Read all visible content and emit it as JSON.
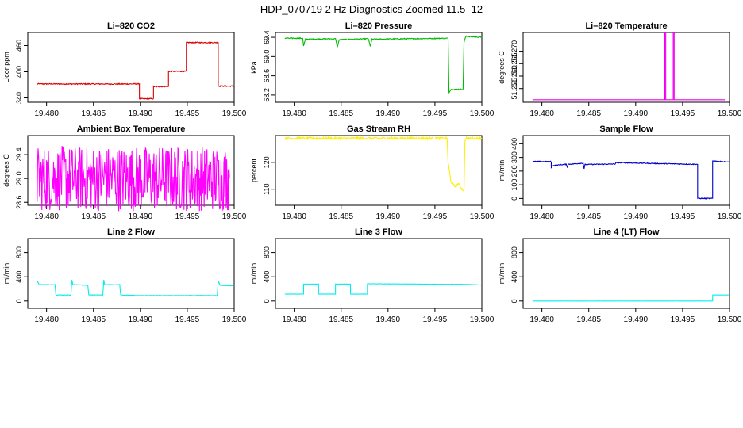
{
  "figure": {
    "title": "HDP_070719  2 Hz Diagnostics Zoomed 11.5–12"
  },
  "chart_data": [
    {
      "type": "line",
      "title": "Li–820 CO2",
      "xlabel": "",
      "ylabel": "Licor ppm",
      "color": "#dd0000",
      "xlim": [
        19.478,
        19.5
      ],
      "ylim": [
        330,
        490
      ],
      "xticks": [
        "19.480",
        "19.485",
        "19.490",
        "19.495",
        "19.500"
      ],
      "yticks": [
        "340",
        "400",
        "460"
      ],
      "ytick_values": [
        340,
        400,
        460
      ],
      "series": [
        {
          "x": [
            19.479,
            19.4899,
            19.4899,
            19.4914,
            19.4914,
            19.493,
            19.493,
            19.4949,
            19.4949,
            19.4983,
            19.4983,
            19.5
          ],
          "y": [
            372,
            372,
            338,
            338,
            366,
            366,
            401,
            401,
            467,
            467,
            367,
            367
          ],
          "noise": 1.2
        }
      ]
    },
    {
      "type": "line",
      "title": "Li–820 Pressure",
      "xlabel": "",
      "ylabel": "kPa",
      "color": "#00bb00",
      "xlim": [
        19.478,
        19.5
      ],
      "ylim": [
        68.05,
        69.5
      ],
      "xticks": [
        "19.480",
        "19.485",
        "19.490",
        "19.495",
        "19.500"
      ],
      "yticks": [
        "68.2",
        "68.6",
        "69.0",
        "69.4"
      ],
      "ytick_values": [
        68.2,
        68.6,
        69.0,
        69.4
      ],
      "series": [
        {
          "x": [
            19.479,
            19.4809,
            19.481,
            19.4812,
            19.4844,
            19.4846,
            19.4848,
            19.4879,
            19.4881,
            19.4883,
            19.4964,
            19.4965,
            19.4967,
            19.498,
            19.4981,
            19.4983,
            19.5
          ],
          "y": [
            69.38,
            69.38,
            69.22,
            69.36,
            69.37,
            69.2,
            69.35,
            69.37,
            69.22,
            69.36,
            69.38,
            68.25,
            68.32,
            68.32,
            69.3,
            69.42,
            69.4
          ],
          "noise": 0.01
        }
      ]
    },
    {
      "type": "line",
      "title": "Li–820 Temperature",
      "xlabel": "",
      "ylabel": "degrees C",
      "color": "#ee00ee",
      "xlim": [
        19.478,
        19.5
      ],
      "ylim": [
        51.2495,
        51.2775
      ],
      "xticks": [
        "19.480",
        "19.485",
        "19.490",
        "19.495",
        "19.500"
      ],
      "yticks": [
        "51.255",
        "51.260",
        "51.265",
        "51.270"
      ],
      "ytick_values": [
        51.255,
        51.26,
        51.265,
        51.27
      ],
      "series": [
        {
          "x": [
            19.479,
            19.4931,
            19.4931,
            19.4932,
            19.4932,
            19.494,
            19.494,
            19.4941,
            19.4941,
            19.4995
          ],
          "y": [
            51.2505,
            51.2505,
            51.2775,
            51.2775,
            51.2505,
            51.2505,
            51.2775,
            51.2775,
            51.2505,
            51.2505
          ],
          "noise": 0
        }
      ]
    },
    {
      "type": "line",
      "title": "Ambient Box Temperature",
      "xlabel": "",
      "ylabel": "degrees C",
      "color": "#ff00ff",
      "xlim": [
        19.478,
        19.5
      ],
      "ylim": [
        28.55,
        29.72
      ],
      "xticks": [
        "19.480",
        "19.485",
        "19.490",
        "19.495",
        "19.500"
      ],
      "yticks": [
        "28.6",
        "29.0",
        "29.4"
      ],
      "ytick_values": [
        28.6,
        29.0,
        29.4
      ],
      "series": [
        {
          "x": [
            19.479,
            19.4995
          ],
          "y": [
            29.0,
            29.0
          ],
          "noise": 0.55
        }
      ]
    },
    {
      "type": "line",
      "title": "Gas Stream RH",
      "xlabel": "",
      "ylabel": "percent",
      "color": "#ffee00",
      "xlim": [
        19.478,
        19.5
      ],
      "ylim": [
        104,
        130
      ],
      "xticks": [
        "19.480",
        "19.485",
        "19.490",
        "19.495",
        "19.500"
      ],
      "yticks": [
        "110",
        "120"
      ],
      "ytick_values": [
        110,
        120
      ],
      "series": [
        {
          "x": [
            19.479,
            19.4963,
            19.4964,
            19.4967,
            19.4971,
            19.4975,
            19.4979,
            19.4981,
            19.4982,
            19.4983,
            19.5
          ],
          "y": [
            129,
            129,
            120,
            113,
            111,
            112,
            110,
            109.5,
            128,
            129,
            129
          ],
          "noise": 0.4
        }
      ]
    },
    {
      "type": "line",
      "title": "Sample Flow",
      "xlabel": "",
      "ylabel": "ml/min",
      "color": "#0000cc",
      "xlim": [
        19.478,
        19.5
      ],
      "ylim": [
        -50,
        460
      ],
      "xticks": [
        "19.480",
        "19.485",
        "19.490",
        "19.495",
        "19.500"
      ],
      "yticks": [
        "0",
        "100",
        "200",
        "300",
        "400"
      ],
      "ytick_values": [
        0,
        100,
        200,
        300,
        400
      ],
      "series": [
        {
          "x": [
            19.479,
            19.481,
            19.481,
            19.4811,
            19.4826,
            19.4827,
            19.4828,
            19.4844,
            19.4845,
            19.4846,
            19.4878,
            19.4879,
            19.496,
            19.4966,
            19.4966,
            19.4981,
            19.4982,
            19.4982,
            19.5
          ],
          "y": [
            270,
            270,
            220,
            240,
            250,
            230,
            250,
            258,
            218,
            248,
            252,
            262,
            250,
            250,
            0,
            0,
            0,
            275,
            265
          ],
          "noise": 3
        }
      ]
    },
    {
      "type": "line",
      "title": "Line 2 Flow",
      "xlabel": "",
      "ylabel": "ml/min",
      "color": "#00eeee",
      "xlim": [
        19.478,
        19.5
      ],
      "ylim": [
        -120,
        1030
      ],
      "xticks": [
        "19.480",
        "19.485",
        "19.490",
        "19.495",
        "19.500"
      ],
      "yticks": [
        "0",
        "400",
        "800"
      ],
      "ytick_values": [
        0,
        400,
        800
      ],
      "series": [
        {
          "x": [
            19.479,
            19.4792,
            19.4809,
            19.481,
            19.4826,
            19.4827,
            19.4828,
            19.4844,
            19.4845,
            19.486,
            19.4861,
            19.4862,
            19.4878,
            19.4879,
            19.4897,
            19.4982,
            19.4983,
            19.4985,
            19.4999
          ],
          "y": [
            340,
            270,
            270,
            100,
            100,
            350,
            270,
            260,
            100,
            100,
            350,
            270,
            270,
            100,
            90,
            90,
            330,
            260,
            250
          ],
          "noise": 4
        }
      ]
    },
    {
      "type": "line",
      "title": "Line 3 Flow",
      "xlabel": "",
      "ylabel": "ml/min",
      "color": "#00eeee",
      "xlim": [
        19.478,
        19.5
      ],
      "ylim": [
        -120,
        1030
      ],
      "xticks": [
        "19.480",
        "19.485",
        "19.490",
        "19.495",
        "19.500"
      ],
      "yticks": [
        "0",
        "400",
        "800"
      ],
      "ytick_values": [
        0,
        400,
        800
      ],
      "series": [
        {
          "x": [
            19.479,
            19.481,
            19.481,
            19.4826,
            19.4826,
            19.4844,
            19.4844,
            19.486,
            19.486,
            19.4878,
            19.4878,
            19.4985,
            19.5
          ],
          "y": [
            115,
            115,
            280,
            280,
            115,
            115,
            280,
            280,
            115,
            115,
            285,
            275,
            265
          ],
          "noise": 2
        }
      ]
    },
    {
      "type": "line",
      "title": "Line 4 (LT) Flow",
      "xlabel": "",
      "ylabel": "ml/min",
      "color": "#00eeee",
      "xlim": [
        19.478,
        19.5
      ],
      "ylim": [
        -120,
        1030
      ],
      "xticks": [
        "19.480",
        "19.485",
        "19.490",
        "19.495",
        "19.500"
      ],
      "yticks": [
        "0",
        "400",
        "800"
      ],
      "ytick_values": [
        0,
        400,
        800
      ],
      "series": [
        {
          "x": [
            19.479,
            19.4982,
            19.4982,
            19.4999
          ],
          "y": [
            0,
            0,
            100,
            100
          ],
          "noise": 1
        }
      ]
    }
  ]
}
